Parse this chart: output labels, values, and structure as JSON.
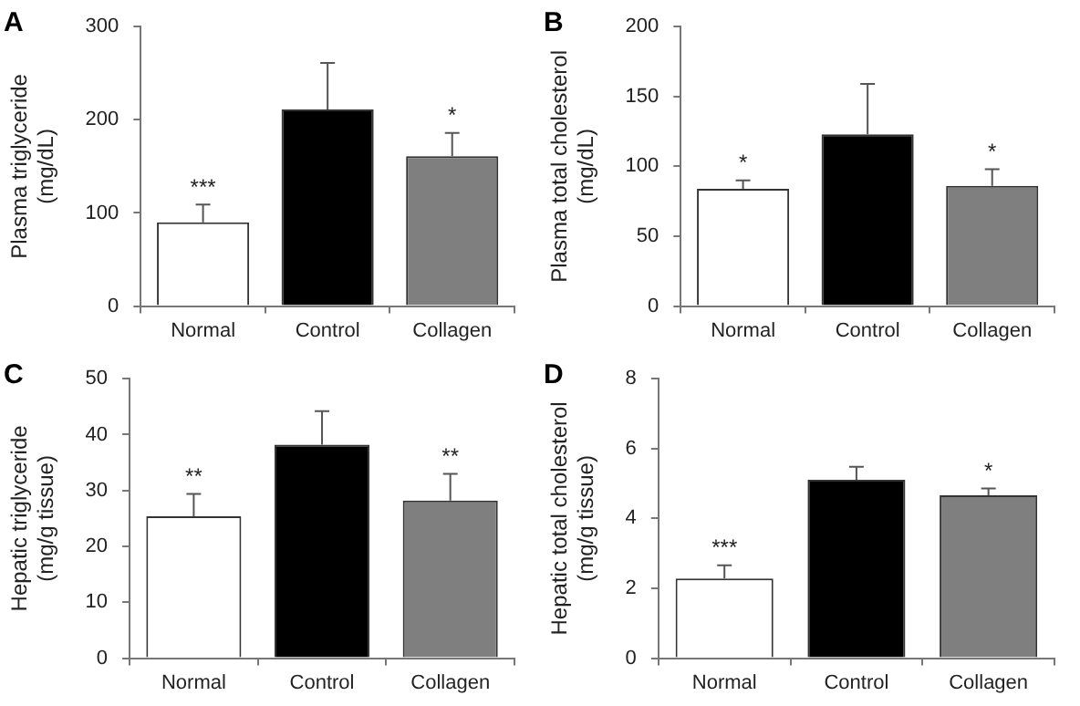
{
  "chart_data": [
    {
      "type": "bar",
      "title": "A",
      "ylabel": "Plasma triglyceride\n(mg/dL)",
      "categories": [
        "Normal",
        "Control",
        "Collagen"
      ],
      "values": [
        90,
        211,
        161
      ],
      "errors": [
        19,
        50,
        25
      ],
      "colors": [
        "#ffffff",
        "#000000",
        "#7f7f7f"
      ],
      "ylim": [
        0,
        300
      ],
      "yticks": [
        0,
        100,
        200,
        300
      ],
      "grid": false,
      "annotations": [
        {
          "text": "***",
          "x": "Normal",
          "y": 90
        },
        {
          "text": "*",
          "x": "Collagen",
          "y": 161
        }
      ]
    },
    {
      "type": "bar",
      "title": "B",
      "ylabel": "Plasma total cholesterol\n(mg/dL)",
      "categories": [
        "Normal",
        "Control",
        "Collagen"
      ],
      "values": [
        84,
        123,
        86
      ],
      "errors": [
        6,
        36,
        12
      ],
      "colors": [
        "#ffffff",
        "#000000",
        "#7f7f7f"
      ],
      "ylim": [
        0,
        200
      ],
      "yticks": [
        0,
        50,
        100,
        150,
        200
      ],
      "grid": false,
      "annotations": [
        {
          "text": "*",
          "x": "Normal",
          "y": 84
        },
        {
          "text": "*",
          "x": "Collagen",
          "y": 86
        }
      ]
    },
    {
      "type": "bar",
      "title": "C",
      "ylabel": "Hepatic triglyceride\n(mg/g tissue)",
      "categories": [
        "Normal",
        "Control",
        "Collagen"
      ],
      "values": [
        25.4,
        38.2,
        28.2
      ],
      "errors": [
        4,
        6,
        4.8
      ],
      "colors": [
        "#ffffff",
        "#000000",
        "#7f7f7f"
      ],
      "ylim": [
        0,
        50
      ],
      "yticks": [
        0,
        10,
        20,
        30,
        40,
        50
      ],
      "grid": false,
      "annotations": [
        {
          "text": "**",
          "x": "Normal",
          "y": 25.4
        },
        {
          "text": "**",
          "x": "Collagen",
          "y": 28.2
        }
      ]
    },
    {
      "type": "bar",
      "title": "D",
      "ylabel": "Hepatic total cholesterol\n(mg/g tissue)",
      "categories": [
        "Normal",
        "Control",
        "Collagen"
      ],
      "values": [
        2.28,
        5.11,
        4.66
      ],
      "errors": [
        0.38,
        0.37,
        0.2
      ],
      "colors": [
        "#ffffff",
        "#000000",
        "#7f7f7f"
      ],
      "ylim": [
        0,
        8
      ],
      "yticks": [
        0,
        2,
        4,
        6,
        8
      ],
      "grid": false,
      "annotations": [
        {
          "text": "***",
          "x": "Normal",
          "y": 2.28
        },
        {
          "text": "*",
          "x": "Collagen",
          "y": 4.66
        }
      ]
    }
  ]
}
